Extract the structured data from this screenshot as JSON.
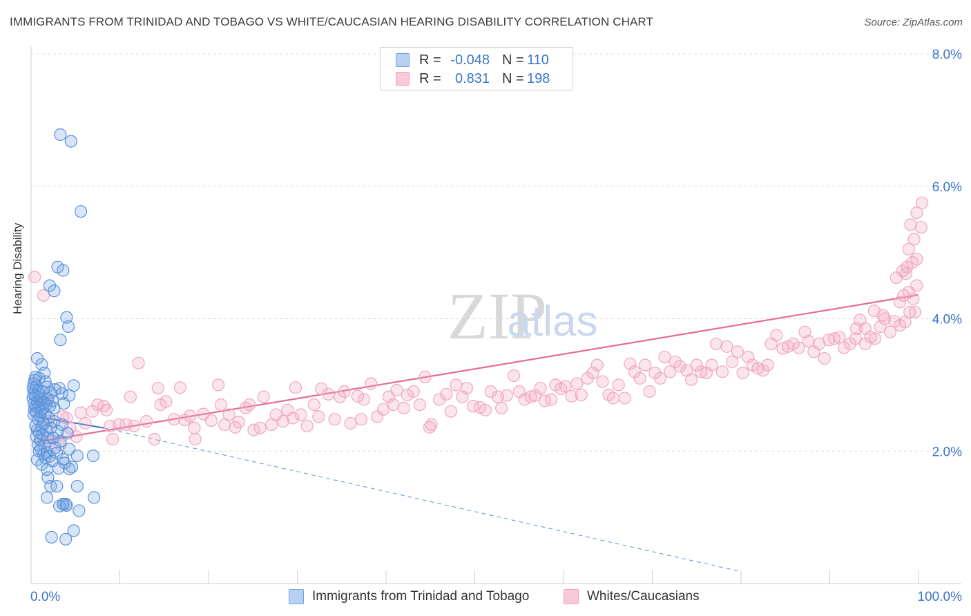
{
  "title": "IMMIGRANTS FROM TRINIDAD AND TOBAGO VS WHITE/CAUCASIAN HEARING DISABILITY CORRELATION CHART",
  "source": "Source: ZipAtlas.com",
  "watermark": {
    "zip": "ZIP",
    "atlas": "atlas"
  },
  "legend": {
    "rows": [
      {
        "r_label": "R =",
        "r_value": "-0.048",
        "n_label": "N =",
        "n_value": "110",
        "color": "#6fa1e0"
      },
      {
        "r_label": "R =",
        "r_value": "0.831",
        "n_label": "N =",
        "n_value": "198",
        "color": "#f2a0bb"
      }
    ]
  },
  "bottom_legend": [
    {
      "label": "Immigrants from Trinidad and Tobago",
      "color": "#6fa1e0"
    },
    {
      "label": "Whites/Caucasians",
      "color": "#f2a0bb"
    }
  ],
  "chart_data": {
    "type": "scatter",
    "title": "IMMIGRANTS FROM TRINIDAD AND TOBAGO VS WHITE/CAUCASIAN HEARING DISABILITY CORRELATION CHART",
    "xlabel": "",
    "ylabel": "Hearing Disability",
    "xlim": [
      0,
      100
    ],
    "ylim": [
      0,
      8
    ],
    "x_tick_labels": [
      "0.0%",
      "100.0%"
    ],
    "y_ticks": [
      2,
      4,
      6,
      8
    ],
    "y_tick_labels": [
      "2.0%",
      "4.0%",
      "6.0%",
      "8.0%"
    ],
    "grid": "horizontal dashed",
    "series": [
      {
        "name": "Immigrants from Trinidad and Tobago",
        "color": "#6fa1e0",
        "trend": {
          "x": [
            0.3,
            8.2
          ],
          "y": [
            2.53,
            2.35
          ],
          "extended_x": [
            8.2,
            80
          ],
          "extended_y": [
            2.35,
            0.18
          ]
        },
        "points": [
          [
            3.3,
            6.78
          ],
          [
            4.5,
            6.68
          ],
          [
            5.6,
            5.62
          ],
          [
            3.0,
            4.78
          ],
          [
            3.6,
            4.73
          ],
          [
            2.1,
            4.5
          ],
          [
            2.6,
            4.42
          ],
          [
            4.0,
            4.02
          ],
          [
            4.2,
            3.88
          ],
          [
            3.3,
            3.68
          ],
          [
            0.7,
            3.4
          ],
          [
            1.2,
            3.31
          ],
          [
            1.5,
            3.18
          ],
          [
            0.5,
            3.12
          ],
          [
            0.9,
            3.1
          ],
          [
            0.4,
            3.07
          ],
          [
            1.6,
            3.05
          ],
          [
            0.3,
            3.02
          ],
          [
            0.6,
            2.98
          ],
          [
            0.2,
            2.95
          ],
          [
            1.8,
            2.97
          ],
          [
            3.2,
            2.95
          ],
          [
            2.7,
            2.93
          ],
          [
            4.8,
            2.99
          ],
          [
            0.4,
            2.92
          ],
          [
            0.8,
            2.9
          ],
          [
            0.3,
            2.86
          ],
          [
            1.3,
            2.9
          ],
          [
            2.2,
            2.88
          ],
          [
            3.5,
            2.87
          ],
          [
            4.3,
            2.84
          ],
          [
            0.5,
            2.83
          ],
          [
            0.9,
            2.81
          ],
          [
            0.2,
            2.8
          ],
          [
            1.1,
            2.78
          ],
          [
            1.9,
            2.78
          ],
          [
            2.4,
            2.76
          ],
          [
            0.7,
            2.75
          ],
          [
            1.4,
            2.73
          ],
          [
            0.3,
            2.72
          ],
          [
            1.0,
            2.7
          ],
          [
            1.7,
            2.7
          ],
          [
            3.7,
            2.72
          ],
          [
            0.5,
            2.68
          ],
          [
            2.1,
            2.68
          ],
          [
            0.8,
            2.66
          ],
          [
            1.3,
            2.64
          ],
          [
            2.6,
            2.65
          ],
          [
            0.4,
            2.62
          ],
          [
            1.1,
            2.6
          ],
          [
            0.6,
            2.58
          ],
          [
            1.6,
            2.56
          ],
          [
            0.3,
            2.55
          ],
          [
            1.0,
            2.52
          ],
          [
            2.0,
            2.5
          ],
          [
            0.8,
            2.48
          ],
          [
            2.6,
            2.45
          ],
          [
            1.4,
            2.42
          ],
          [
            3.5,
            2.4
          ],
          [
            0.5,
            2.38
          ],
          [
            1.2,
            2.37
          ],
          [
            2.2,
            2.35
          ],
          [
            0.7,
            2.32
          ],
          [
            1.7,
            2.31
          ],
          [
            3.0,
            2.3
          ],
          [
            0.9,
            2.28
          ],
          [
            4.1,
            2.27
          ],
          [
            1.3,
            2.25
          ],
          [
            0.6,
            2.22
          ],
          [
            1.9,
            2.2
          ],
          [
            2.5,
            2.2
          ],
          [
            1.0,
            2.17
          ],
          [
            3.3,
            2.15
          ],
          [
            0.8,
            2.1
          ],
          [
            1.5,
            2.08
          ],
          [
            2.7,
            2.05
          ],
          [
            1.1,
            2.03
          ],
          [
            4.3,
            2.03
          ],
          [
            0.9,
            2.0
          ],
          [
            1.8,
            1.98
          ],
          [
            2.9,
            1.97
          ],
          [
            1.4,
            1.95
          ],
          [
            5.2,
            1.93
          ],
          [
            7.0,
            1.93
          ],
          [
            2.1,
            1.92
          ],
          [
            1.6,
            1.9
          ],
          [
            3.6,
            1.88
          ],
          [
            0.7,
            1.87
          ],
          [
            2.4,
            1.85
          ],
          [
            3.8,
            1.82
          ],
          [
            1.2,
            1.8
          ],
          [
            4.6,
            1.76
          ],
          [
            3.1,
            1.74
          ],
          [
            4.3,
            1.73
          ],
          [
            1.8,
            1.72
          ],
          [
            1.9,
            1.6
          ],
          [
            2.2,
            1.47
          ],
          [
            2.9,
            1.47
          ],
          [
            5.2,
            1.47
          ],
          [
            1.8,
            1.3
          ],
          [
            7.1,
            1.3
          ],
          [
            3.6,
            1.2
          ],
          [
            3.9,
            1.2
          ],
          [
            3.2,
            1.17
          ],
          [
            4.0,
            1.18
          ],
          [
            5.4,
            1.1
          ],
          [
            4.8,
            0.8
          ],
          [
            2.3,
            0.7
          ],
          [
            3.9,
            0.67
          ],
          [
            3.6,
            1.2
          ]
        ]
      },
      {
        "name": "Whites/Caucasians",
        "color": "#f2a0bb",
        "trend": {
          "x": [
            0.3,
            100
          ],
          "y": [
            2.13,
            4.36
          ]
        },
        "points": [
          [
            0.4,
            4.63
          ],
          [
            1.4,
            4.35
          ],
          [
            1.8,
            2.78
          ],
          [
            1.9,
            2.45
          ],
          [
            2.0,
            2.15
          ],
          [
            3.3,
            2.1
          ],
          [
            3.6,
            2.52
          ],
          [
            4.0,
            2.5
          ],
          [
            4.4,
            2.35
          ],
          [
            5.1,
            2.22
          ],
          [
            5.6,
            2.58
          ],
          [
            6.1,
            2.42
          ],
          [
            6.9,
            2.6
          ],
          [
            7.5,
            2.7
          ],
          [
            8.2,
            2.68
          ],
          [
            8.5,
            2.62
          ],
          [
            8.9,
            2.38
          ],
          [
            9.2,
            2.18
          ],
          [
            9.9,
            2.4
          ],
          [
            10.7,
            2.4
          ],
          [
            11.2,
            2.82
          ],
          [
            11.6,
            2.38
          ],
          [
            12.1,
            3.33
          ],
          [
            13.0,
            2.45
          ],
          [
            13.9,
            2.18
          ],
          [
            14.3,
            2.95
          ],
          [
            14.6,
            2.7
          ],
          [
            15.2,
            2.75
          ],
          [
            16.1,
            2.48
          ],
          [
            16.8,
            2.96
          ],
          [
            17.3,
            2.47
          ],
          [
            17.9,
            2.53
          ],
          [
            18.4,
            2.35
          ],
          [
            18.5,
            2.18
          ],
          [
            19.4,
            2.56
          ],
          [
            20.3,
            2.46
          ],
          [
            21.1,
            3.0
          ],
          [
            21.4,
            2.7
          ],
          [
            21.8,
            2.4
          ],
          [
            22.3,
            2.55
          ],
          [
            23.0,
            2.36
          ],
          [
            23.4,
            2.44
          ],
          [
            24.2,
            2.65
          ],
          [
            24.6,
            2.7
          ],
          [
            25.1,
            2.32
          ],
          [
            25.8,
            2.35
          ],
          [
            26.2,
            2.82
          ],
          [
            27.1,
            2.4
          ],
          [
            27.6,
            2.55
          ],
          [
            28.4,
            2.45
          ],
          [
            28.9,
            2.62
          ],
          [
            29.5,
            2.5
          ],
          [
            29.8,
            2.96
          ],
          [
            30.4,
            2.55
          ],
          [
            31.1,
            2.38
          ],
          [
            31.9,
            2.7
          ],
          [
            32.4,
            2.52
          ],
          [
            32.7,
            2.94
          ],
          [
            33.5,
            2.86
          ],
          [
            34.2,
            2.48
          ],
          [
            34.8,
            2.82
          ],
          [
            35.3,
            2.9
          ],
          [
            36.0,
            2.42
          ],
          [
            36.8,
            2.83
          ],
          [
            37.2,
            2.48
          ],
          [
            37.5,
            2.78
          ],
          [
            38.3,
            3.02
          ],
          [
            39.0,
            2.52
          ],
          [
            39.7,
            2.63
          ],
          [
            40.3,
            2.82
          ],
          [
            40.8,
            2.7
          ],
          [
            41.2,
            2.92
          ],
          [
            42.0,
            2.65
          ],
          [
            42.4,
            2.85
          ],
          [
            43.1,
            2.9
          ],
          [
            43.8,
            2.7
          ],
          [
            44.4,
            3.12
          ],
          [
            44.9,
            2.36
          ],
          [
            45.1,
            2.4
          ],
          [
            46.0,
            2.78
          ],
          [
            46.8,
            2.86
          ],
          [
            47.3,
            2.6
          ],
          [
            47.9,
            3.0
          ],
          [
            48.6,
            2.82
          ],
          [
            49.1,
            2.95
          ],
          [
            49.8,
            2.68
          ],
          [
            50.6,
            2.66
          ],
          [
            51.2,
            2.62
          ],
          [
            51.8,
            2.9
          ],
          [
            52.6,
            2.82
          ],
          [
            53.0,
            2.65
          ],
          [
            53.6,
            2.84
          ],
          [
            54.4,
            3.14
          ],
          [
            55.0,
            2.9
          ],
          [
            55.6,
            2.78
          ],
          [
            56.3,
            2.82
          ],
          [
            56.8,
            2.84
          ],
          [
            57.4,
            2.95
          ],
          [
            57.9,
            2.76
          ],
          [
            58.6,
            2.78
          ],
          [
            59.1,
            3.0
          ],
          [
            59.7,
            2.94
          ],
          [
            60.2,
            2.98
          ],
          [
            60.9,
            2.83
          ],
          [
            61.5,
            3.02
          ],
          [
            62.0,
            2.85
          ],
          [
            62.7,
            3.1
          ],
          [
            63.3,
            3.18
          ],
          [
            63.8,
            3.3
          ],
          [
            64.4,
            3.05
          ],
          [
            65.1,
            2.85
          ],
          [
            65.6,
            2.8
          ],
          [
            66.2,
            3.0
          ],
          [
            66.9,
            2.8
          ],
          [
            67.5,
            3.32
          ],
          [
            68.0,
            3.2
          ],
          [
            68.6,
            3.1
          ],
          [
            69.2,
            3.3
          ],
          [
            69.7,
            2.9
          ],
          [
            70.3,
            3.18
          ],
          [
            70.9,
            3.1
          ],
          [
            71.4,
            3.42
          ],
          [
            72.0,
            3.2
          ],
          [
            72.6,
            3.35
          ],
          [
            73.1,
            3.28
          ],
          [
            73.9,
            3.22
          ],
          [
            74.4,
            3.08
          ],
          [
            75.0,
            3.3
          ],
          [
            75.5,
            3.2
          ],
          [
            76.1,
            3.18
          ],
          [
            76.7,
            3.3
          ],
          [
            77.2,
            3.62
          ],
          [
            77.9,
            3.2
          ],
          [
            78.4,
            3.58
          ],
          [
            79.0,
            3.35
          ],
          [
            79.6,
            3.5
          ],
          [
            80.2,
            3.18
          ],
          [
            80.8,
            3.42
          ],
          [
            81.3,
            3.3
          ],
          [
            81.9,
            3.25
          ],
          [
            82.5,
            3.22
          ],
          [
            83.0,
            3.3
          ],
          [
            83.4,
            3.62
          ],
          [
            84.0,
            3.75
          ],
          [
            84.7,
            3.55
          ],
          [
            85.3,
            3.58
          ],
          [
            85.9,
            3.62
          ],
          [
            86.5,
            3.56
          ],
          [
            87.2,
            3.8
          ],
          [
            87.6,
            3.66
          ],
          [
            88.2,
            3.5
          ],
          [
            88.8,
            3.62
          ],
          [
            89.4,
            3.4
          ],
          [
            89.9,
            3.68
          ],
          [
            90.5,
            3.7
          ],
          [
            91.1,
            3.72
          ],
          [
            91.6,
            3.56
          ],
          [
            92.3,
            3.62
          ],
          [
            92.9,
            3.7
          ],
          [
            93.4,
            3.98
          ],
          [
            94.0,
            3.62
          ],
          [
            94.6,
            3.72
          ],
          [
            95.1,
            3.7
          ],
          [
            95.7,
            3.88
          ],
          [
            96.2,
            4.0
          ],
          [
            96.8,
            3.8
          ],
          [
            97.3,
            3.96
          ],
          [
            97.9,
            3.9
          ],
          [
            98.5,
            3.95
          ],
          [
            99.0,
            4.1
          ],
          [
            99.6,
            4.1
          ],
          [
            97.9,
            4.25
          ],
          [
            98.3,
            4.35
          ],
          [
            98.9,
            4.4
          ],
          [
            99.4,
            4.3
          ],
          [
            99.8,
            4.5
          ],
          [
            97.5,
            4.62
          ],
          [
            98.2,
            4.72
          ],
          [
            98.7,
            4.78
          ],
          [
            99.3,
            4.85
          ],
          [
            99.8,
            4.9
          ],
          [
            98.9,
            5.05
          ],
          [
            99.5,
            5.2
          ],
          [
            100.3,
            5.38
          ],
          [
            99.1,
            5.42
          ],
          [
            99.8,
            5.6
          ],
          [
            100.4,
            5.75
          ],
          [
            98.6,
            4.68
          ],
          [
            96.0,
            4.05
          ],
          [
            95.0,
            4.12
          ],
          [
            94.0,
            3.85
          ],
          [
            93.0,
            3.85
          ]
        ]
      }
    ]
  }
}
